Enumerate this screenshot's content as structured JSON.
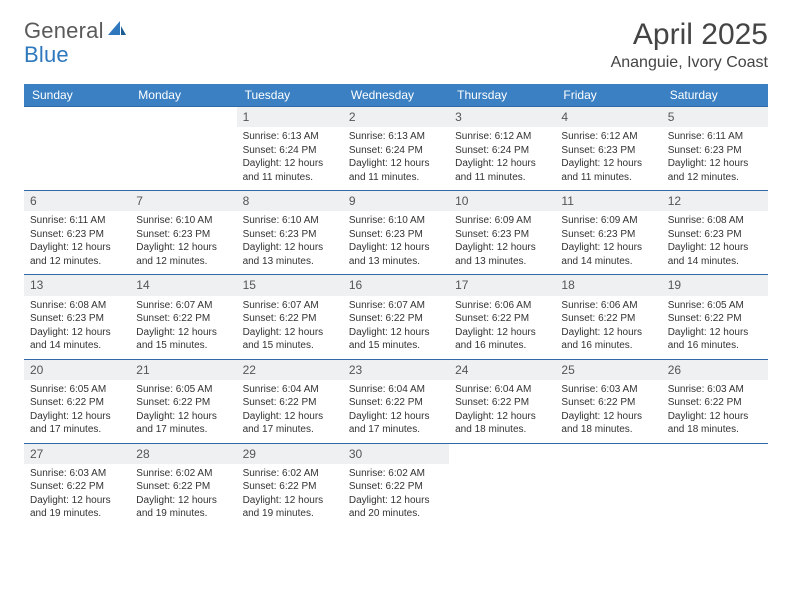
{
  "brand": {
    "name_part1": "General",
    "name_part2": "Blue"
  },
  "header": {
    "title": "April 2025",
    "location": "Ananguie, Ivory Coast"
  },
  "colors": {
    "header_bg": "#3a80c3",
    "header_text": "#ffffff",
    "daynum_bg": "#eef0f2",
    "row_border": "#2f6aa6",
    "brand_gray": "#5a5a5a",
    "brand_blue": "#2f78bd"
  },
  "days_of_week": [
    "Sunday",
    "Monday",
    "Tuesday",
    "Wednesday",
    "Thursday",
    "Friday",
    "Saturday"
  ],
  "weeks": [
    [
      null,
      null,
      {
        "n": "1",
        "sr": "Sunrise: 6:13 AM",
        "ss": "Sunset: 6:24 PM",
        "dl": "Daylight: 12 hours and 11 minutes."
      },
      {
        "n": "2",
        "sr": "Sunrise: 6:13 AM",
        "ss": "Sunset: 6:24 PM",
        "dl": "Daylight: 12 hours and 11 minutes."
      },
      {
        "n": "3",
        "sr": "Sunrise: 6:12 AM",
        "ss": "Sunset: 6:24 PM",
        "dl": "Daylight: 12 hours and 11 minutes."
      },
      {
        "n": "4",
        "sr": "Sunrise: 6:12 AM",
        "ss": "Sunset: 6:23 PM",
        "dl": "Daylight: 12 hours and 11 minutes."
      },
      {
        "n": "5",
        "sr": "Sunrise: 6:11 AM",
        "ss": "Sunset: 6:23 PM",
        "dl": "Daylight: 12 hours and 12 minutes."
      }
    ],
    [
      {
        "n": "6",
        "sr": "Sunrise: 6:11 AM",
        "ss": "Sunset: 6:23 PM",
        "dl": "Daylight: 12 hours and 12 minutes."
      },
      {
        "n": "7",
        "sr": "Sunrise: 6:10 AM",
        "ss": "Sunset: 6:23 PM",
        "dl": "Daylight: 12 hours and 12 minutes."
      },
      {
        "n": "8",
        "sr": "Sunrise: 6:10 AM",
        "ss": "Sunset: 6:23 PM",
        "dl": "Daylight: 12 hours and 13 minutes."
      },
      {
        "n": "9",
        "sr": "Sunrise: 6:10 AM",
        "ss": "Sunset: 6:23 PM",
        "dl": "Daylight: 12 hours and 13 minutes."
      },
      {
        "n": "10",
        "sr": "Sunrise: 6:09 AM",
        "ss": "Sunset: 6:23 PM",
        "dl": "Daylight: 12 hours and 13 minutes."
      },
      {
        "n": "11",
        "sr": "Sunrise: 6:09 AM",
        "ss": "Sunset: 6:23 PM",
        "dl": "Daylight: 12 hours and 14 minutes."
      },
      {
        "n": "12",
        "sr": "Sunrise: 6:08 AM",
        "ss": "Sunset: 6:23 PM",
        "dl": "Daylight: 12 hours and 14 minutes."
      }
    ],
    [
      {
        "n": "13",
        "sr": "Sunrise: 6:08 AM",
        "ss": "Sunset: 6:23 PM",
        "dl": "Daylight: 12 hours and 14 minutes."
      },
      {
        "n": "14",
        "sr": "Sunrise: 6:07 AM",
        "ss": "Sunset: 6:22 PM",
        "dl": "Daylight: 12 hours and 15 minutes."
      },
      {
        "n": "15",
        "sr": "Sunrise: 6:07 AM",
        "ss": "Sunset: 6:22 PM",
        "dl": "Daylight: 12 hours and 15 minutes."
      },
      {
        "n": "16",
        "sr": "Sunrise: 6:07 AM",
        "ss": "Sunset: 6:22 PM",
        "dl": "Daylight: 12 hours and 15 minutes."
      },
      {
        "n": "17",
        "sr": "Sunrise: 6:06 AM",
        "ss": "Sunset: 6:22 PM",
        "dl": "Daylight: 12 hours and 16 minutes."
      },
      {
        "n": "18",
        "sr": "Sunrise: 6:06 AM",
        "ss": "Sunset: 6:22 PM",
        "dl": "Daylight: 12 hours and 16 minutes."
      },
      {
        "n": "19",
        "sr": "Sunrise: 6:05 AM",
        "ss": "Sunset: 6:22 PM",
        "dl": "Daylight: 12 hours and 16 minutes."
      }
    ],
    [
      {
        "n": "20",
        "sr": "Sunrise: 6:05 AM",
        "ss": "Sunset: 6:22 PM",
        "dl": "Daylight: 12 hours and 17 minutes."
      },
      {
        "n": "21",
        "sr": "Sunrise: 6:05 AM",
        "ss": "Sunset: 6:22 PM",
        "dl": "Daylight: 12 hours and 17 minutes."
      },
      {
        "n": "22",
        "sr": "Sunrise: 6:04 AM",
        "ss": "Sunset: 6:22 PM",
        "dl": "Daylight: 12 hours and 17 minutes."
      },
      {
        "n": "23",
        "sr": "Sunrise: 6:04 AM",
        "ss": "Sunset: 6:22 PM",
        "dl": "Daylight: 12 hours and 17 minutes."
      },
      {
        "n": "24",
        "sr": "Sunrise: 6:04 AM",
        "ss": "Sunset: 6:22 PM",
        "dl": "Daylight: 12 hours and 18 minutes."
      },
      {
        "n": "25",
        "sr": "Sunrise: 6:03 AM",
        "ss": "Sunset: 6:22 PM",
        "dl": "Daylight: 12 hours and 18 minutes."
      },
      {
        "n": "26",
        "sr": "Sunrise: 6:03 AM",
        "ss": "Sunset: 6:22 PM",
        "dl": "Daylight: 12 hours and 18 minutes."
      }
    ],
    [
      {
        "n": "27",
        "sr": "Sunrise: 6:03 AM",
        "ss": "Sunset: 6:22 PM",
        "dl": "Daylight: 12 hours and 19 minutes."
      },
      {
        "n": "28",
        "sr": "Sunrise: 6:02 AM",
        "ss": "Sunset: 6:22 PM",
        "dl": "Daylight: 12 hours and 19 minutes."
      },
      {
        "n": "29",
        "sr": "Sunrise: 6:02 AM",
        "ss": "Sunset: 6:22 PM",
        "dl": "Daylight: 12 hours and 19 minutes."
      },
      {
        "n": "30",
        "sr": "Sunrise: 6:02 AM",
        "ss": "Sunset: 6:22 PM",
        "dl": "Daylight: 12 hours and 20 minutes."
      },
      null,
      null,
      null
    ]
  ]
}
